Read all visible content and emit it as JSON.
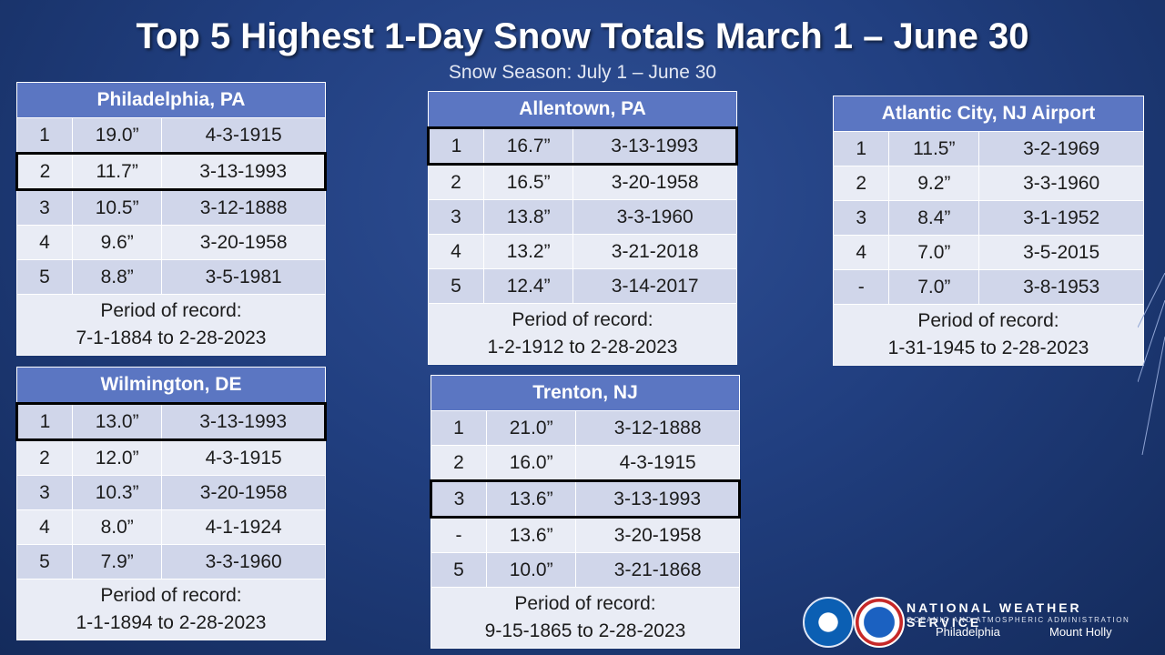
{
  "title": "Top 5 Highest 1-Day Snow Totals March 1 – June 30",
  "subtitle": "Snow Season: July 1 – June 30",
  "tables": [
    {
      "name": "Philadelphia, PA",
      "rows": [
        {
          "rank": "1",
          "value": "19.0”",
          "date": "4-3-1915"
        },
        {
          "rank": "2",
          "value": "11.7”",
          "date": "3-13-1993"
        },
        {
          "rank": "3",
          "value": "10.5”",
          "date": "3-12-1888"
        },
        {
          "rank": "4",
          "value": "9.6”",
          "date": "3-20-1958"
        },
        {
          "rank": "5",
          "value": "8.8”",
          "date": "3-5-1981"
        }
      ],
      "period_label": "Period of record:",
      "period_range": "7-1-1884 to 2-28-2023"
    },
    {
      "name": "Wilmington, DE",
      "rows": [
        {
          "rank": "1",
          "value": "13.0”",
          "date": "3-13-1993"
        },
        {
          "rank": "2",
          "value": "12.0”",
          "date": "4-3-1915"
        },
        {
          "rank": "3",
          "value": "10.3”",
          "date": "3-20-1958"
        },
        {
          "rank": "4",
          "value": "8.0”",
          "date": "4-1-1924"
        },
        {
          "rank": "5",
          "value": "7.9”",
          "date": "3-3-1960"
        }
      ],
      "period_label": "Period of record:",
      "period_range": "1-1-1894 to 2-28-2023"
    },
    {
      "name": "Allentown, PA",
      "rows": [
        {
          "rank": "1",
          "value": "16.7”",
          "date": "3-13-1993"
        },
        {
          "rank": "2",
          "value": "16.5”",
          "date": "3-20-1958"
        },
        {
          "rank": "3",
          "value": "13.8”",
          "date": "3-3-1960"
        },
        {
          "rank": "4",
          "value": "13.2”",
          "date": "3-21-2018"
        },
        {
          "rank": "5",
          "value": "12.4”",
          "date": "3-14-2017"
        }
      ],
      "period_label": "Period of record:",
      "period_range": "1-2-1912 to 2-28-2023"
    },
    {
      "name": "Trenton, NJ",
      "rows": [
        {
          "rank": "1",
          "value": "21.0”",
          "date": "3-12-1888"
        },
        {
          "rank": "2",
          "value": "16.0”",
          "date": "4-3-1915"
        },
        {
          "rank": "3",
          "value": "13.6”",
          "date": "3-13-1993"
        },
        {
          "rank": "-",
          "value": "13.6”",
          "date": "3-20-1958"
        },
        {
          "rank": "5",
          "value": "10.0”",
          "date": "3-21-1868"
        }
      ],
      "period_label": "Period of record:",
      "period_range": "9-15-1865 to 2-28-2023"
    },
    {
      "name": "Atlantic City, NJ Airport",
      "rows": [
        {
          "rank": "1",
          "value": "11.5”",
          "date": "3-2-1969"
        },
        {
          "rank": "2",
          "value": "9.2”",
          "date": "3-3-1960"
        },
        {
          "rank": "3",
          "value": "8.4”",
          "date": "3-1-1952"
        },
        {
          "rank": "4",
          "value": "7.0”",
          "date": "3-5-2015"
        },
        {
          "rank": "-",
          "value": "7.0”",
          "date": "3-8-1953"
        }
      ],
      "period_label": "Period of record:",
      "period_range": "1-31-1945 to 2-28-2023"
    }
  ],
  "footer": {
    "org_name": "NATIONAL WEATHER SERVICE",
    "org_sub": "OCEANIC AND ATMOSPHERIC ADMINISTRATION",
    "office_left": "Philadelphia",
    "office_right": "Mount Holly",
    "logo_left_text": "NOAA",
    "logo_right_text": "NATIONAL WEATHER SERVICE"
  },
  "colors": {
    "header": "#5b76c2",
    "row_odd": "#d0d6ea",
    "row_even": "#e9ecf5",
    "background": "#213f80"
  }
}
